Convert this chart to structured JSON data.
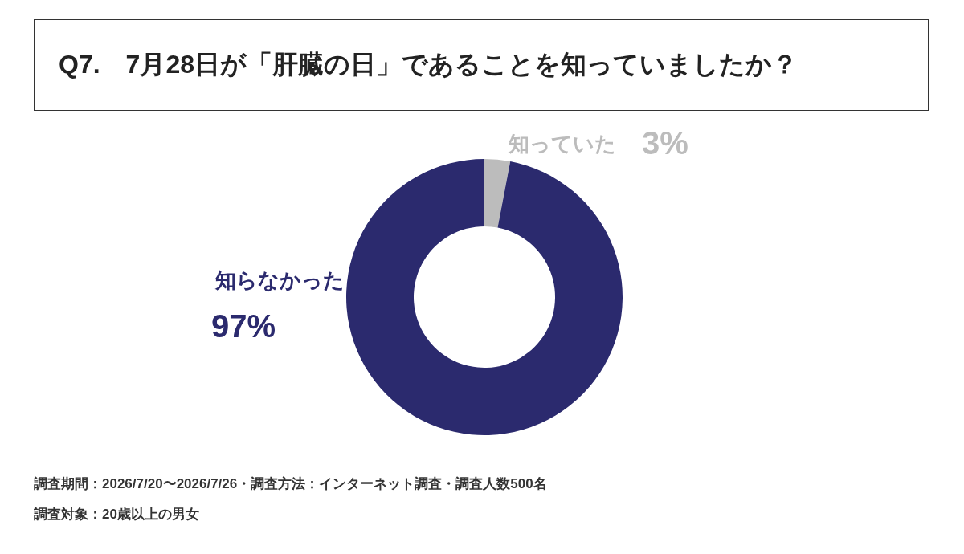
{
  "chart_data": {
    "type": "donut",
    "title": "Q7.　7月28日が「肝臓の日」であることを知っていましたか？",
    "categories": [
      "知っていた",
      "知らなかった"
    ],
    "values": [
      3,
      97
    ],
    "colors": [
      "#bcbcbc",
      "#2b2a6e"
    ],
    "value_labels": [
      "3%",
      "97%"
    ],
    "annotations": [
      "調査期間：2026/7/20〜2026/7/26・調査方法：インターネット調査・調査人数500名",
      "調査対象：20歳以上の男女"
    ]
  }
}
